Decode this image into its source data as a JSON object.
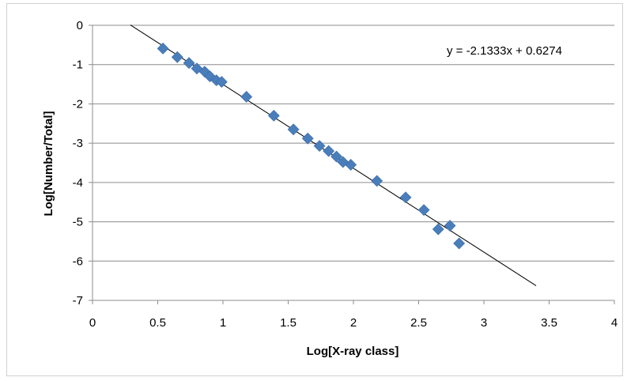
{
  "chart_data": {
    "type": "scatter",
    "title": "",
    "xlabel": "Log[X-ray class]",
    "ylabel": "Log[Number/Total]",
    "xlim": [
      0,
      4
    ],
    "ylim": [
      -7,
      0
    ],
    "x_ticks": [
      "0",
      "0.5",
      "1",
      "1.5",
      "2",
      "2.5",
      "3",
      "3.5",
      "4"
    ],
    "y_ticks": [
      "0",
      "-1",
      "-2",
      "-3",
      "-4",
      "-5",
      "-6",
      "-7"
    ],
    "grid": "horizontal",
    "legend": "none",
    "marker": "diamond",
    "marker_color": "#4a7ebb",
    "points": [
      {
        "x": 0.54,
        "y": -0.59
      },
      {
        "x": 0.65,
        "y": -0.81
      },
      {
        "x": 0.74,
        "y": -0.96
      },
      {
        "x": 0.8,
        "y": -1.1
      },
      {
        "x": 0.86,
        "y": -1.18
      },
      {
        "x": 0.9,
        "y": -1.3
      },
      {
        "x": 0.95,
        "y": -1.4
      },
      {
        "x": 0.99,
        "y": -1.44
      },
      {
        "x": 1.18,
        "y": -1.82
      },
      {
        "x": 1.39,
        "y": -2.3
      },
      {
        "x": 1.54,
        "y": -2.65
      },
      {
        "x": 1.65,
        "y": -2.88
      },
      {
        "x": 1.74,
        "y": -3.07
      },
      {
        "x": 1.81,
        "y": -3.2
      },
      {
        "x": 1.87,
        "y": -3.34
      },
      {
        "x": 1.92,
        "y": -3.48
      },
      {
        "x": 1.98,
        "y": -3.55
      },
      {
        "x": 2.18,
        "y": -3.96
      },
      {
        "x": 2.4,
        "y": -4.38
      },
      {
        "x": 2.54,
        "y": -4.7
      },
      {
        "x": 2.65,
        "y": -5.19
      },
      {
        "x": 2.74,
        "y": -5.1
      },
      {
        "x": 2.81,
        "y": -5.55
      }
    ],
    "trendline": {
      "type": "linear",
      "slope": -2.1333,
      "intercept": 0.6274,
      "x_range": [
        0.29,
        3.4
      ],
      "color": "#000000",
      "equation_label": "y = -2.1333x + 0.6274"
    }
  }
}
